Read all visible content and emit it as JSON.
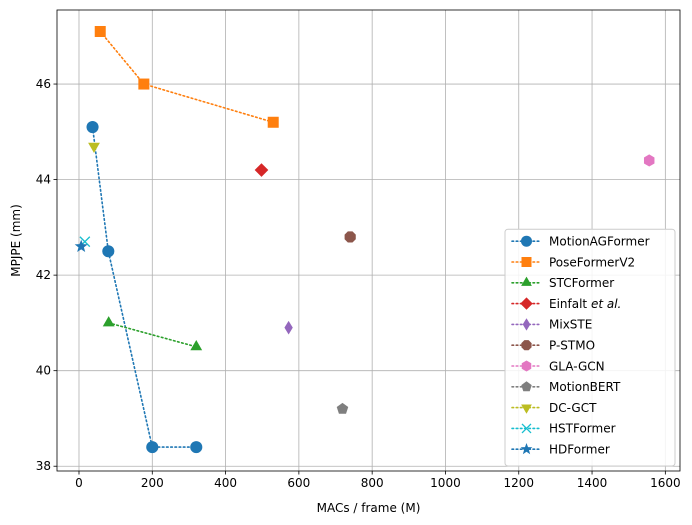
{
  "chart_data": {
    "type": "scatter",
    "xlabel": "MACs / frame (M)",
    "ylabel": "MPJPE (mm)",
    "xlim": [
      -60,
      1640
    ],
    "ylim": [
      37.9,
      47.55
    ],
    "xticks": [
      0,
      200,
      400,
      600,
      800,
      1000,
      1200,
      1400,
      1600
    ],
    "yticks": [
      38,
      40,
      42,
      44,
      46
    ],
    "grid": true,
    "legend_position": "bottom-right",
    "series": [
      {
        "name": "MotionAGFormer",
        "name_suffix": "",
        "color": "#1f77b4",
        "marker": "circle",
        "linestyle": "dotted",
        "points": [
          [
            37,
            45.1
          ],
          [
            80,
            42.5
          ],
          [
            200,
            38.4
          ],
          [
            320,
            38.4
          ]
        ]
      },
      {
        "name": "PoseFormerV2",
        "name_suffix": "",
        "color": "#ff7f0e",
        "marker": "square",
        "linestyle": "dotted",
        "points": [
          [
            58,
            47.1
          ],
          [
            177,
            46.0
          ],
          [
            530,
            45.2
          ]
        ]
      },
      {
        "name": "STCFormer",
        "name_suffix": "",
        "color": "#2ca02c",
        "marker": "triangle-up",
        "linestyle": "dotted",
        "points": [
          [
            81,
            41.0
          ],
          [
            320,
            40.5
          ]
        ]
      },
      {
        "name": "Einfalt ",
        "name_suffix": "et al.",
        "color": "#d62728",
        "marker": "diamond",
        "linestyle": "dotted",
        "points": [
          [
            498,
            44.2
          ]
        ]
      },
      {
        "name": "MixSTE",
        "name_suffix": "",
        "color": "#9467bd",
        "marker": "thin-diamond",
        "linestyle": "dotted",
        "points": [
          [
            572,
            40.9
          ]
        ]
      },
      {
        "name": "P-STMO",
        "name_suffix": "",
        "color": "#8c564b",
        "marker": "octagon",
        "linestyle": "dotted",
        "points": [
          [
            740,
            42.8
          ]
        ]
      },
      {
        "name": "GLA-GCN",
        "name_suffix": "",
        "color": "#e377c2",
        "marker": "hexagon",
        "linestyle": "dotted",
        "points": [
          [
            1556,
            44.4
          ]
        ]
      },
      {
        "name": "MotionBERT",
        "name_suffix": "",
        "color": "#7f7f7f",
        "marker": "pentagon",
        "linestyle": "dotted",
        "points": [
          [
            719,
            39.2
          ]
        ]
      },
      {
        "name": "DC-GCT",
        "name_suffix": "",
        "color": "#bcbd22",
        "marker": "triangle-down",
        "linestyle": "dotted",
        "points": [
          [
            41,
            44.7
          ]
        ]
      },
      {
        "name": "HSTFormer",
        "name_suffix": "",
        "color": "#17becf",
        "marker": "x",
        "linestyle": "dotted",
        "points": [
          [
            16,
            42.7
          ]
        ]
      },
      {
        "name": "HDFormer",
        "name_suffix": "",
        "color": "#1f77b4",
        "marker": "star",
        "linestyle": "dotted",
        "points": [
          [
            6,
            42.6
          ]
        ]
      }
    ]
  }
}
